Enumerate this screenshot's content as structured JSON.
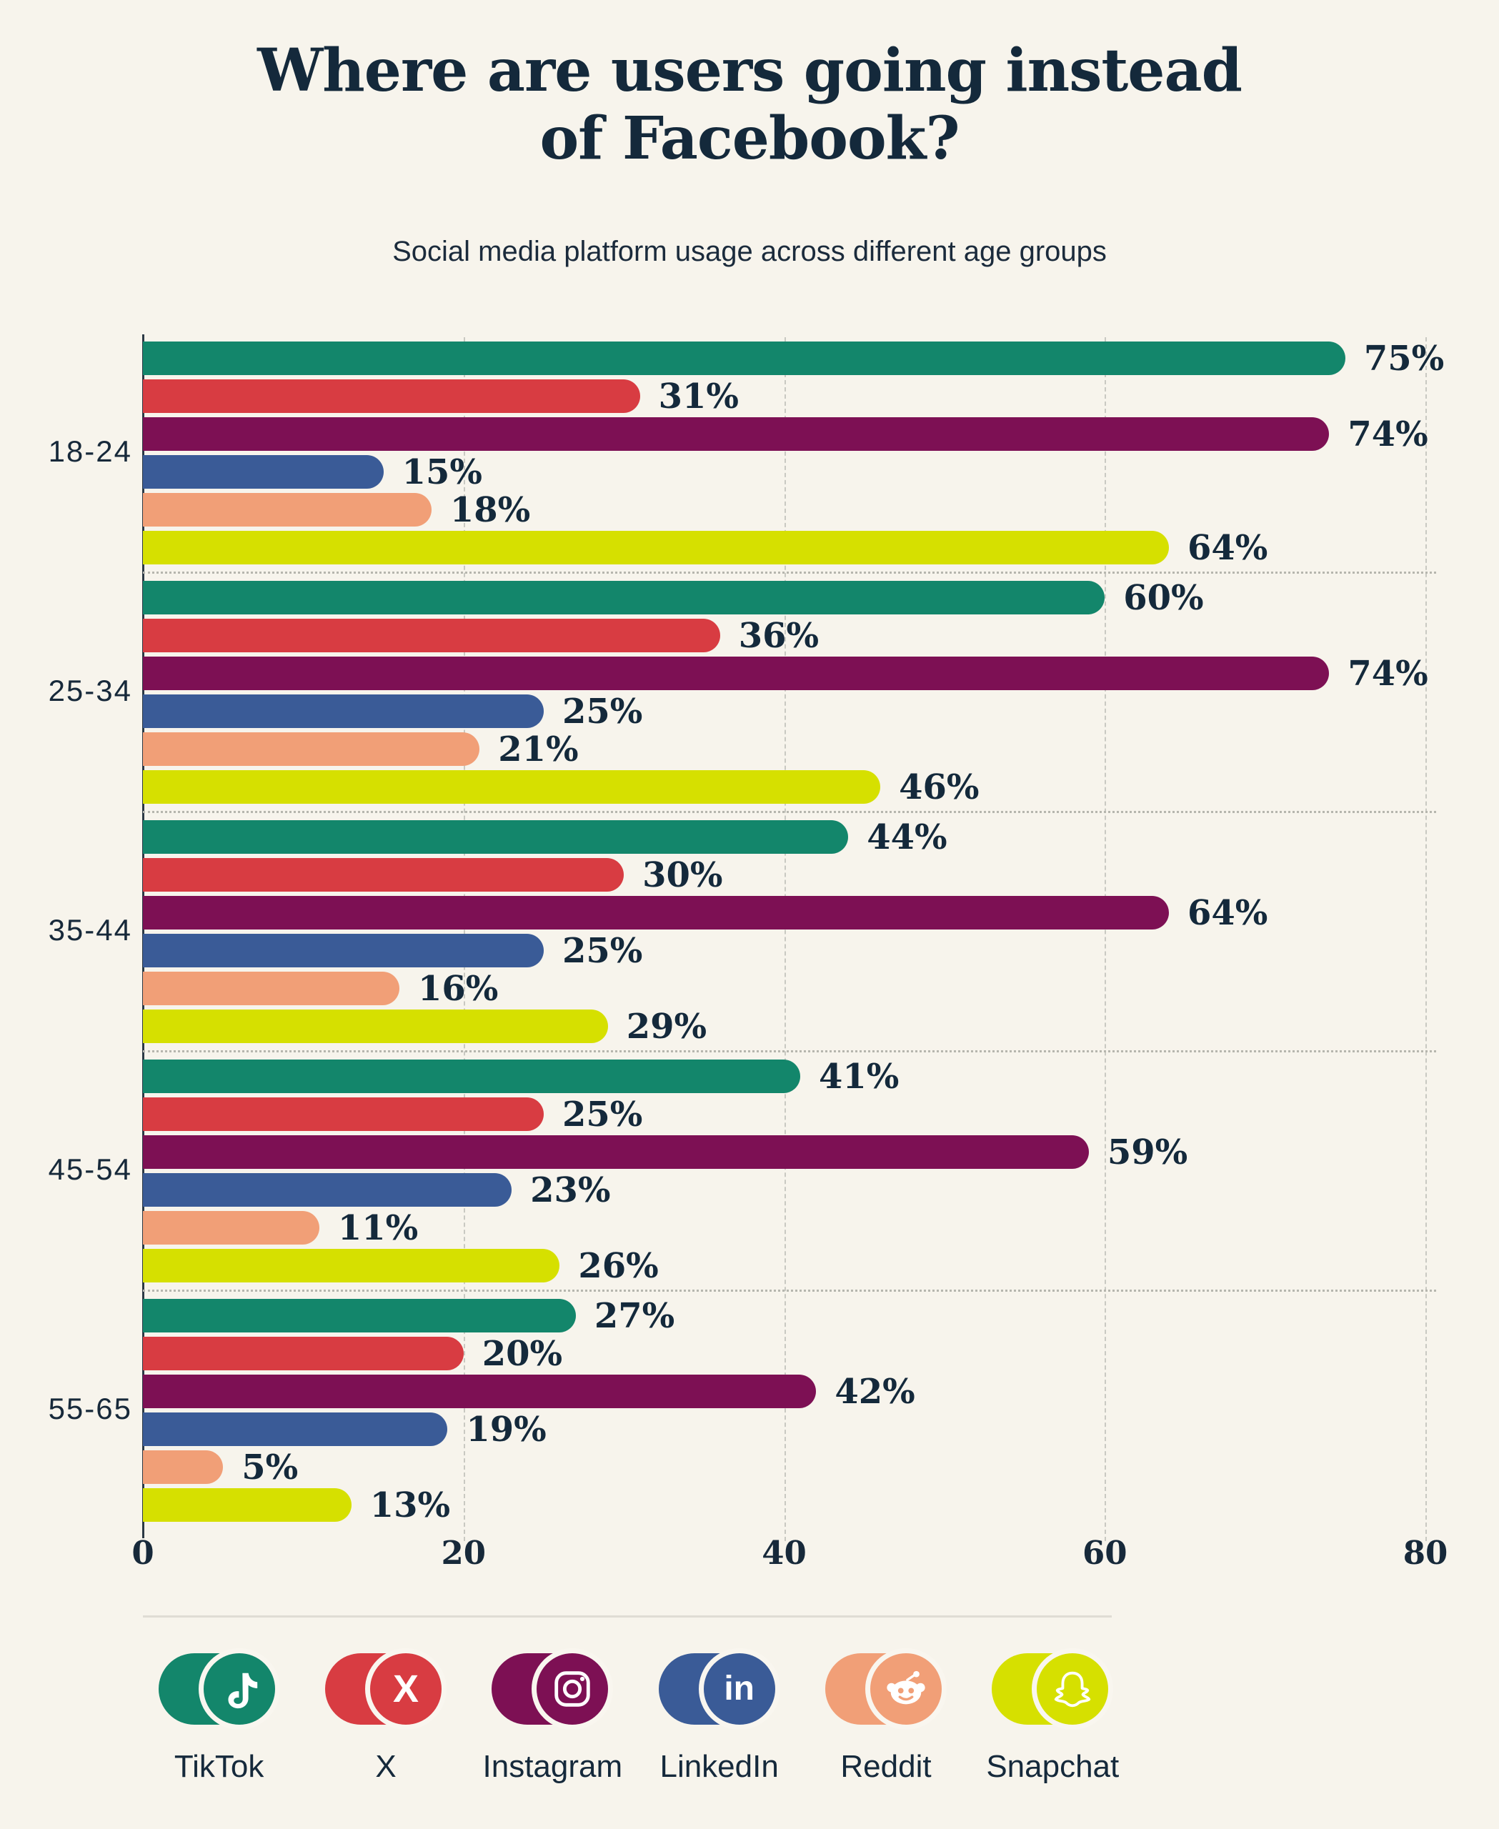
{
  "title": "Where are users going instead of Facebook?",
  "title_lines": [
    "Where are users going instead",
    "of Facebook?"
  ],
  "subtitle": "Social media platform usage across different age groups",
  "colors": {
    "background": "#f7f4ec",
    "text": "#14293b",
    "gridline": "#c9c9c2",
    "separator": "#b6b6ae",
    "axis": "#2c3945",
    "legend_divider": "#dfdcd4"
  },
  "chart_data": {
    "type": "bar",
    "orientation": "horizontal",
    "title": "Where are users going instead of Facebook?",
    "subtitle": "Social media platform usage across different age groups",
    "categories": [
      "18-24",
      "25-34",
      "35-44",
      "45-54",
      "55-65"
    ],
    "series": [
      {
        "name": "TikTok",
        "icon": "tiktok-icon",
        "color": "#13866b",
        "values": [
          75,
          60,
          44,
          41,
          27
        ]
      },
      {
        "name": "X",
        "icon": "x-icon",
        "color": "#d83c42",
        "values": [
          31,
          36,
          30,
          25,
          20
        ]
      },
      {
        "name": "Instagram",
        "icon": "instagram-icon",
        "color": "#7d1054",
        "values": [
          74,
          74,
          64,
          59,
          42
        ]
      },
      {
        "name": "LinkedIn",
        "icon": "linkedin-icon",
        "color": "#3a5b97",
        "values": [
          15,
          25,
          25,
          23,
          19
        ]
      },
      {
        "name": "Reddit",
        "icon": "reddit-icon",
        "color": "#f19f77",
        "values": [
          18,
          21,
          16,
          11,
          5
        ]
      },
      {
        "name": "Snapchat",
        "icon": "snapchat-icon",
        "color": "#d6e000",
        "values": [
          64,
          46,
          29,
          26,
          13
        ]
      }
    ],
    "value_suffix": "%",
    "xlabel": "",
    "ylabel": "",
    "x_ticks": [
      0,
      20,
      40,
      60,
      80
    ],
    "xlim": [
      0,
      80
    ],
    "grid": "vertical-dashed",
    "legend_position": "bottom"
  }
}
